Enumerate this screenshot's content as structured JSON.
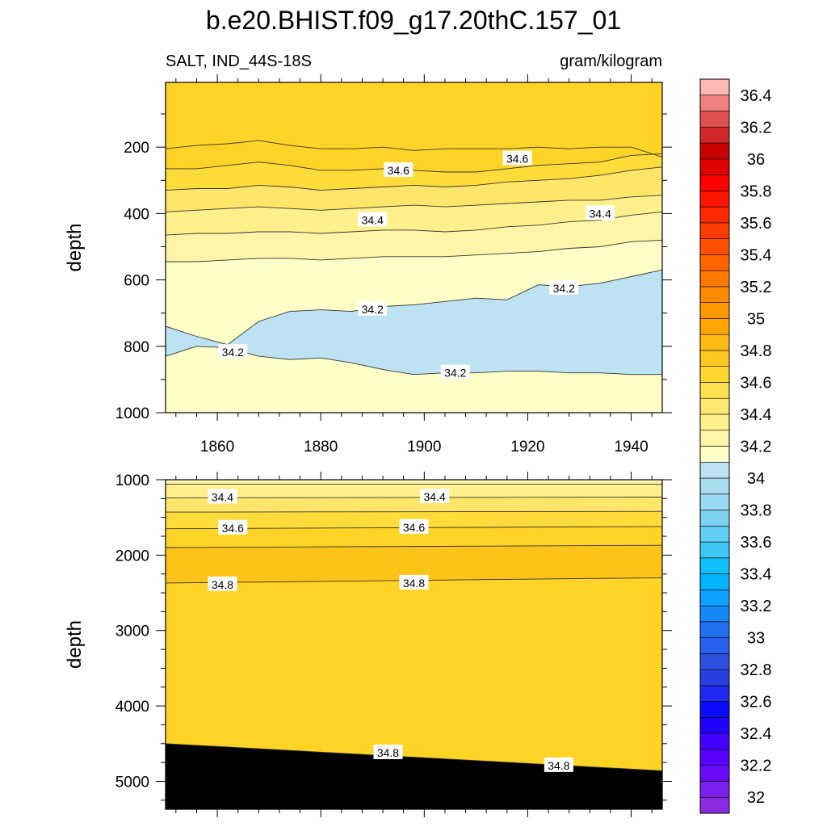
{
  "title": "b.e20.BHIST.f09_g17.20thC.157_01",
  "variable_label": "SALT, IND_44S-18S",
  "units_label": "gram/kilogram",
  "colors": {
    "blue_band": "#bde3f3",
    "pale_yellow": "#ffffc8",
    "contour_line": "#333333"
  },
  "chart_data": [
    {
      "type": "contour",
      "panel": "upper",
      "title": "",
      "xlabel": "",
      "ylabel": "depth",
      "xlim": [
        1850,
        1946
      ],
      "ylim": [
        1000,
        5
      ],
      "y_reversed": true,
      "x_ticks": [
        1860,
        1880,
        1900,
        1920,
        1940
      ],
      "x_tick_labels": [
        "1860",
        "1880",
        "1900",
        "1920",
        "1940"
      ],
      "y_ticks": [
        200,
        400,
        600,
        800,
        1000
      ],
      "y_tick_labels": [
        "200",
        "400",
        "600",
        "800",
        "1000"
      ],
      "x": [
        1850,
        1856,
        1862,
        1868,
        1874,
        1880,
        1886,
        1892,
        1898,
        1904,
        1910,
        1916,
        1922,
        1928,
        1934,
        1940,
        1946
      ],
      "series": [
        {
          "name": "34.7 / 34.6 boundary",
          "depth": [
            205,
            195,
            190,
            180,
            195,
            205,
            205,
            200,
            210,
            205,
            205,
            205,
            200,
            205,
            200,
            200,
            230
          ]
        },
        {
          "name": "34.6 contour",
          "depth": [
            265,
            265,
            255,
            245,
            255,
            270,
            270,
            265,
            270,
            275,
            275,
            265,
            255,
            250,
            245,
            225,
            220
          ]
        },
        {
          "name": "34.5 contour",
          "depth": [
            330,
            325,
            325,
            315,
            320,
            330,
            325,
            320,
            315,
            320,
            315,
            305,
            300,
            295,
            285,
            270,
            260
          ]
        },
        {
          "name": "34.4 contour",
          "depth": [
            395,
            390,
            385,
            380,
            385,
            390,
            385,
            380,
            375,
            380,
            375,
            370,
            365,
            360,
            360,
            350,
            345
          ]
        },
        {
          "name": "34.3 contour",
          "depth": [
            465,
            460,
            460,
            455,
            455,
            460,
            455,
            450,
            450,
            455,
            450,
            440,
            435,
            425,
            420,
            405,
            395
          ]
        },
        {
          "name": "34.2 contour (upper)",
          "depth": [
            545,
            545,
            540,
            535,
            535,
            540,
            535,
            530,
            530,
            530,
            525,
            520,
            515,
            505,
            500,
            485,
            480
          ]
        },
        {
          "name": "34.2 lens top",
          "depth": [
            740,
            770,
            795,
            725,
            695,
            690,
            695,
            680,
            675,
            665,
            655,
            660,
            615,
            620,
            610,
            590,
            570
          ]
        },
        {
          "name": "34.2 lens bottom",
          "depth": [
            830,
            800,
            805,
            830,
            840,
            835,
            850,
            870,
            885,
            880,
            880,
            875,
            875,
            880,
            880,
            885,
            885
          ]
        }
      ],
      "contour_labels": [
        {
          "text": "34.6",
          "x": 1895,
          "depth": 270
        },
        {
          "text": "34.6",
          "x": 1918,
          "depth": 235
        },
        {
          "text": "34.4",
          "x": 1890,
          "depth": 420
        },
        {
          "text": "34.4",
          "x": 1934,
          "depth": 400
        },
        {
          "text": "34.2",
          "x": 1890,
          "depth": 688
        },
        {
          "text": "34.2",
          "x": 1927,
          "depth": 625
        },
        {
          "text": "34.2",
          "x": 1863,
          "depth": 818
        },
        {
          "text": "34.2",
          "x": 1906,
          "depth": 880
        }
      ]
    },
    {
      "type": "contour",
      "panel": "lower",
      "title": "",
      "xlabel": "",
      "ylabel": "depth",
      "xlim": [
        1850,
        1946
      ],
      "ylim": [
        5370,
        1000
      ],
      "y_reversed": true,
      "y_ticks": [
        1000,
        2000,
        3000,
        4000,
        5000
      ],
      "y_tick_labels": [
        "1000",
        "2000",
        "3000",
        "4000",
        "5000"
      ],
      "x": [
        1850,
        1946
      ],
      "series": [
        {
          "name": "34.3 contour",
          "depth": [
            1060,
            1060
          ]
        },
        {
          "name": "34.4 contour",
          "depth": [
            1240,
            1230
          ]
        },
        {
          "name": "34.5 contour",
          "depth": [
            1430,
            1420
          ]
        },
        {
          "name": "34.6 contour",
          "depth": [
            1650,
            1620
          ]
        },
        {
          "name": "34.7 contour",
          "depth": [
            1900,
            1870
          ]
        },
        {
          "name": "34.8 contour (upper)",
          "depth": [
            2370,
            2300
          ]
        },
        {
          "name": "34.8 contour (lower)",
          "depth": [
            4500,
            4860
          ]
        }
      ],
      "contour_labels": [
        {
          "text": "34.4",
          "x": 1861,
          "depth": 1230
        },
        {
          "text": "34.4",
          "x": 1902,
          "depth": 1225
        },
        {
          "text": "34.6",
          "x": 1863,
          "depth": 1640
        },
        {
          "text": "34.6",
          "x": 1898,
          "depth": 1630
        },
        {
          "text": "34.8",
          "x": 1861,
          "depth": 2390
        },
        {
          "text": "34.8",
          "x": 1898,
          "depth": 2370
        },
        {
          "text": "34.8",
          "x": 1893,
          "depth": 4620
        },
        {
          "text": "34.8",
          "x": 1926,
          "depth": 4790
        }
      ]
    }
  ],
  "colorbar": {
    "levels": [
      32,
      32.1,
      32.2,
      32.3,
      32.4,
      32.5,
      32.6,
      32.7,
      32.8,
      32.9,
      33,
      33.1,
      33.2,
      33.3,
      33.4,
      33.5,
      33.6,
      33.7,
      33.8,
      33.9,
      34,
      34.1,
      34.2,
      34.3,
      34.4,
      34.5,
      34.6,
      34.7,
      34.8,
      34.9,
      35,
      35.1,
      35.2,
      35.3,
      35.4,
      35.5,
      35.6,
      35.7,
      35.8,
      35.9,
      36,
      36.1,
      36.2,
      36.3,
      36.4,
      36.5
    ],
    "tick_labels": [
      "32",
      "32.2",
      "32.4",
      "32.6",
      "32.8",
      "33",
      "33.2",
      "33.4",
      "33.6",
      "33.8",
      "34",
      "34.2",
      "34.4",
      "34.6",
      "34.8",
      "35",
      "35.2",
      "35.4",
      "35.6",
      "35.8",
      "36",
      "36.2",
      "36.4"
    ],
    "colors": [
      "#8a2be2",
      "#7b1ef0",
      "#6a0af8",
      "#5a00ff",
      "#4400ff",
      "#2200ff",
      "#0a0aff",
      "#1e28f0",
      "#2840e0",
      "#3050e0",
      "#2860f0",
      "#2070f0",
      "#1888f8",
      "#10a0ff",
      "#00b4ff",
      "#10c0fa",
      "#40c8f5",
      "#60cef5",
      "#7ed2f0",
      "#98d8f0",
      "#aadcf0",
      "#bde3f3",
      "#ffffc8",
      "#fff5a8",
      "#fff08c",
      "#ffe870",
      "#ffe050",
      "#ffd530",
      "#ffc81e",
      "#ffbb14",
      "#ffa500",
      "#ff9800",
      "#ff8a00",
      "#ff7800",
      "#ff6400",
      "#ff5000",
      "#ff3c00",
      "#ff2800",
      "#ff1400",
      "#ff0000",
      "#e00000",
      "#c80000",
      "#d02828",
      "#e05050",
      "#f08080",
      "#ffb8b8"
    ]
  }
}
